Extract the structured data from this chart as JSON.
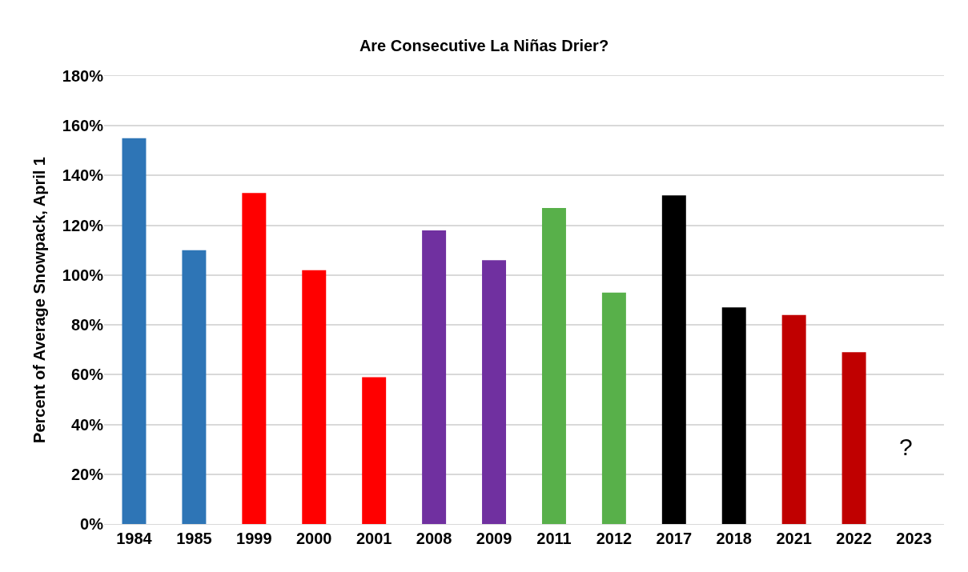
{
  "chart_data": {
    "type": "bar",
    "title": "Are Consecutive La Niñas Drier?",
    "ylabel": "Percent of Average Snowpack, April 1",
    "categories": [
      "1984",
      "1985",
      "1999",
      "2000",
      "2001",
      "2008",
      "2009",
      "2011",
      "2012",
      "2017",
      "2018",
      "2021",
      "2022",
      "2023"
    ],
    "values": [
      155,
      110,
      133,
      102,
      59,
      118,
      106,
      127,
      93,
      132,
      87,
      84,
      69,
      null
    ],
    "colors": [
      "#2e75b6",
      "#2e75b6",
      "#ff0000",
      "#ff0000",
      "#ff0000",
      "#7030a0",
      "#7030a0",
      "#58b04a",
      "#58b04a",
      "#000000",
      "#000000",
      "#c00000",
      "#c00000",
      "#c00000"
    ],
    "ylim": [
      0,
      180
    ],
    "yticks": [
      {
        "value": 0,
        "label": "0%"
      },
      {
        "value": 20,
        "label": "20%"
      },
      {
        "value": 40,
        "label": "40%"
      },
      {
        "value": 60,
        "label": "60%"
      },
      {
        "value": 80,
        "label": "80%"
      },
      {
        "value": 100,
        "label": "100%"
      },
      {
        "value": 120,
        "label": "120%"
      },
      {
        "value": 140,
        "label": "140%"
      },
      {
        "value": 160,
        "label": "160%"
      },
      {
        "value": 180,
        "label": "180%"
      }
    ],
    "grid": "y",
    "annotations": [
      "?"
    ]
  }
}
